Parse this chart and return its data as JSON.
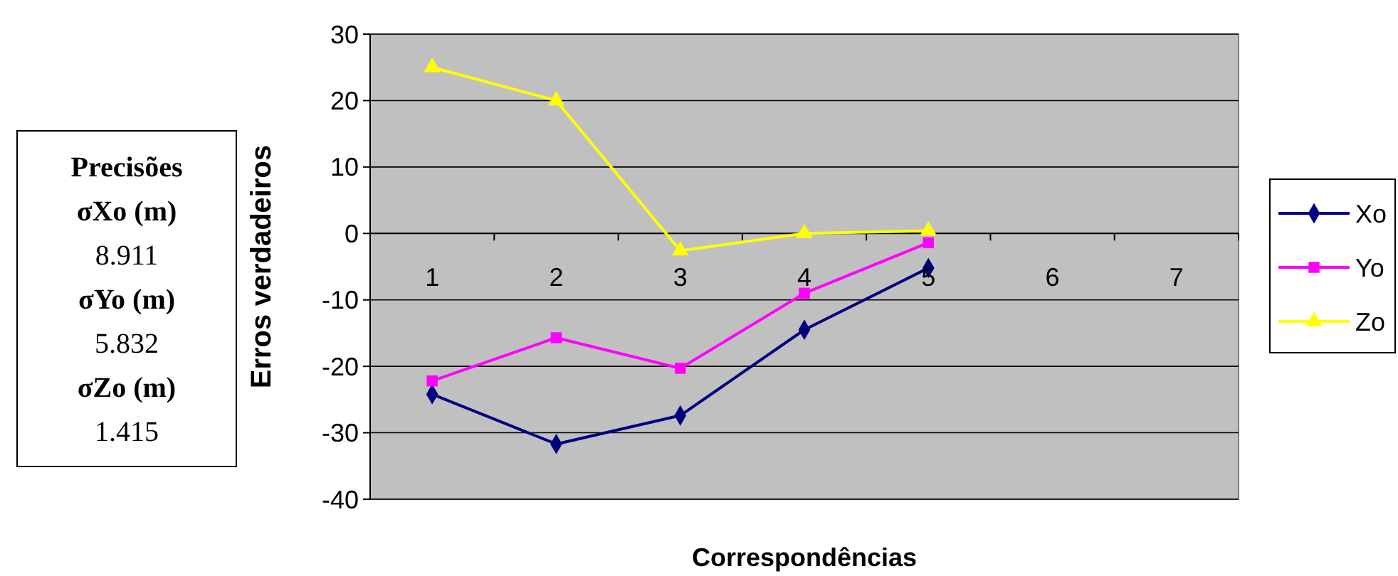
{
  "chart_data": {
    "type": "line",
    "xlabel": "Correspondências",
    "ylabel": "Erros verdadeiros",
    "categories": [
      "1",
      "2",
      "3",
      "4",
      "5",
      "6",
      "7"
    ],
    "ylim": [
      -40,
      30
    ],
    "yticks": [
      -40,
      -30,
      -20,
      -10,
      0,
      10,
      20,
      30
    ],
    "grid": "y",
    "legend": "right",
    "series": [
      {
        "name": "Xo",
        "color": "#000080",
        "marker": "diamond",
        "values": [
          -24.2,
          -31.7,
          -27.4,
          -14.5,
          -5.2,
          null,
          null
        ]
      },
      {
        "name": "Yo",
        "color": "#ff00ff",
        "marker": "square",
        "values": [
          -22.2,
          -15.7,
          -20.3,
          -9.0,
          -1.4,
          null,
          null
        ]
      },
      {
        "name": "Zo",
        "color": "#ffff00",
        "marker": "triangle",
        "values": [
          25,
          20,
          -2.6,
          0,
          0.4,
          null,
          null
        ]
      }
    ],
    "annotations": [
      "Precisões",
      "σXo (m)",
      "8.911",
      "σYo (m)",
      "5.832",
      "σZo (m)",
      "1.415"
    ]
  }
}
